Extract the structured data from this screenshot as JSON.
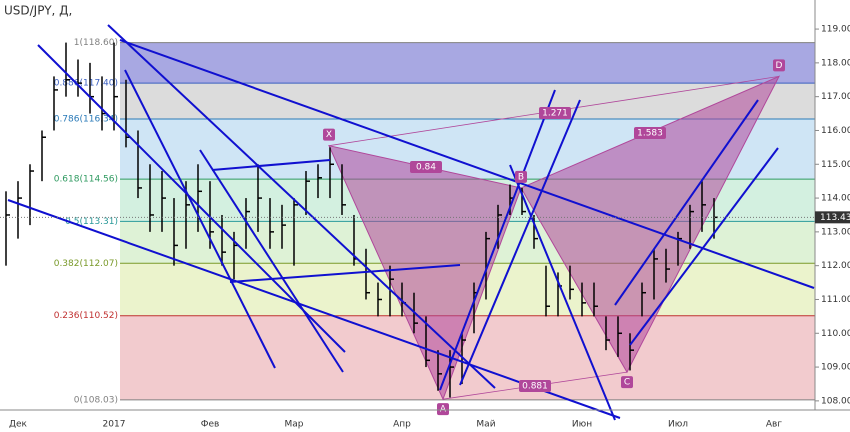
{
  "header": {
    "symbol": "USD/JPY, Д,"
  },
  "chart_data": {
    "type": "ohlc",
    "categories": [
      null,
      "Дек",
      null,
      null,
      null,
      null,
      null,
      null,
      null,
      "2017",
      null,
      null,
      null,
      null,
      null,
      null,
      null,
      "Фев",
      null,
      null,
      null,
      null,
      null,
      null,
      "Мар",
      null,
      null,
      null,
      null,
      null,
      null,
      null,
      null,
      "Апр",
      null,
      null,
      null,
      null,
      null,
      null,
      "Май",
      null,
      null,
      null,
      null,
      null,
      null,
      null,
      "Июн",
      null,
      null,
      null,
      null,
      null,
      null,
      null,
      "Июл",
      null,
      null,
      null,
      null,
      null,
      null,
      null,
      "Авг",
      null,
      null,
      null
    ],
    "high": [
      114.2,
      114.5,
      115,
      116,
      117.6,
      118.6,
      118.1,
      118,
      117.6,
      118.6,
      117.5,
      116,
      115,
      114.8,
      114,
      114.5,
      115,
      114.5,
      113.5,
      113,
      114,
      115,
      114,
      113.8,
      114,
      114.8,
      115,
      115.5,
      115,
      113.5,
      112.5,
      111.5,
      112,
      111.5,
      111.2,
      110.5,
      109.5,
      109.5,
      110,
      111.5,
      113,
      113.8,
      114.4,
      114.3,
      113.5,
      112,
      111.8,
      112,
      111.5,
      111.5,
      110.5,
      110.5,
      110,
      111.5,
      112.5,
      112.5,
      113,
      113.8,
      114.5,
      114,
      null,
      null,
      null,
      null,
      null,
      null,
      null,
      null
    ],
    "low": [
      112,
      112.8,
      113.2,
      114.5,
      116,
      117,
      117,
      116.5,
      116,
      116,
      115.5,
      114,
      113,
      113,
      112,
      112.5,
      113,
      112.5,
      112,
      111.6,
      112.5,
      113,
      112.5,
      112.5,
      112,
      113.5,
      114,
      114,
      113.5,
      112,
      111,
      110.5,
      110.5,
      110.5,
      110,
      109,
      108.3,
      108.1,
      108.5,
      110,
      111,
      112.5,
      113.5,
      113.5,
      112.5,
      110.5,
      110.5,
      111,
      110.5,
      110.5,
      109.5,
      109.3,
      108.9,
      110.5,
      111,
      111.5,
      112,
      112.5,
      113,
      112.8,
      null,
      null,
      null,
      null,
      null,
      null,
      null,
      null
    ],
    "close": [
      113.5,
      114,
      114.8,
      115.8,
      117.2,
      117.5,
      117.4,
      117,
      116.5,
      117,
      115.8,
      114.3,
      113.5,
      114,
      112.6,
      113.8,
      114.2,
      113,
      112.4,
      112.6,
      113.6,
      114,
      113,
      113.2,
      113.8,
      114.5,
      114.6,
      115,
      113.8,
      112.2,
      111.2,
      111,
      111.6,
      110.9,
      110.3,
      109.2,
      108.8,
      109,
      109.8,
      111.2,
      112.8,
      113.5,
      114,
      113.6,
      112.8,
      110.8,
      111.4,
      111.3,
      110.9,
      110.8,
      109.8,
      110,
      109.5,
      111.2,
      112.2,
      111.9,
      112.8,
      113.6,
      113.8,
      113.43,
      null,
      null,
      null,
      null,
      null,
      null,
      null,
      null
    ],
    "color": "#000000",
    "ylim": [
      107.73,
      119.86
    ],
    "yticks": [
      {
        "value": 108,
        "label": "108.00"
      },
      {
        "value": 109,
        "label": "109.00"
      },
      {
        "value": 110,
        "label": "110.00"
      },
      {
        "value": 111,
        "label": "111.00"
      },
      {
        "value": 112,
        "label": "112.00"
      },
      {
        "value": 113,
        "label": "113.00"
      },
      {
        "value": 114,
        "label": "114.00"
      },
      {
        "value": 115,
        "label": "115.00"
      },
      {
        "value": 116,
        "label": "116.00"
      },
      {
        "value": 117,
        "label": "117.00"
      },
      {
        "value": 118,
        "label": "118.00"
      },
      {
        "value": 119,
        "label": "119.00"
      }
    ],
    "last_price": 113.43,
    "fib_levels": [
      {
        "value": 118.6,
        "label": "1(118.60)"
      },
      {
        "value": 117.4,
        "label": "0.886(117.40)"
      },
      {
        "value": 116.34,
        "label": "0.786(116.34)"
      },
      {
        "value": 114.56,
        "label": "0.618(114.56)"
      },
      {
        "value": 113.31,
        "label": "0.5(113.31)"
      },
      {
        "value": 112.07,
        "label": "0.382(112.07)"
      },
      {
        "value": 110.52,
        "label": "0.236(110.52)"
      },
      {
        "value": 108.03,
        "label": "0(108.03)"
      }
    ],
    "fib_colors": [
      "#808080",
      "#3a5fc0",
      "#2a7ab8",
      "#2f9a60",
      "#2a9a9a",
      "#7a9a2a",
      "#c03030",
      "#808080"
    ],
    "fib_fills": [
      "#a8a8e2",
      "#dcdcdc",
      "#cfe5f5",
      "#d3f0e0",
      "#def2d6",
      "#ebf3cc",
      "#f2cbce"
    ],
    "pattern": {
      "color": "#b0479a",
      "points": [
        {
          "label": "X",
          "price": 115.55
        },
        {
          "label": "A",
          "price": 108.05
        },
        {
          "label": "B",
          "price": 114.3
        },
        {
          "label": "C",
          "price": 108.85
        },
        {
          "label": "D",
          "price": 117.6
        }
      ],
      "ratios": [
        0.84,
        0.881,
        1.271,
        1.583
      ]
    }
  }
}
